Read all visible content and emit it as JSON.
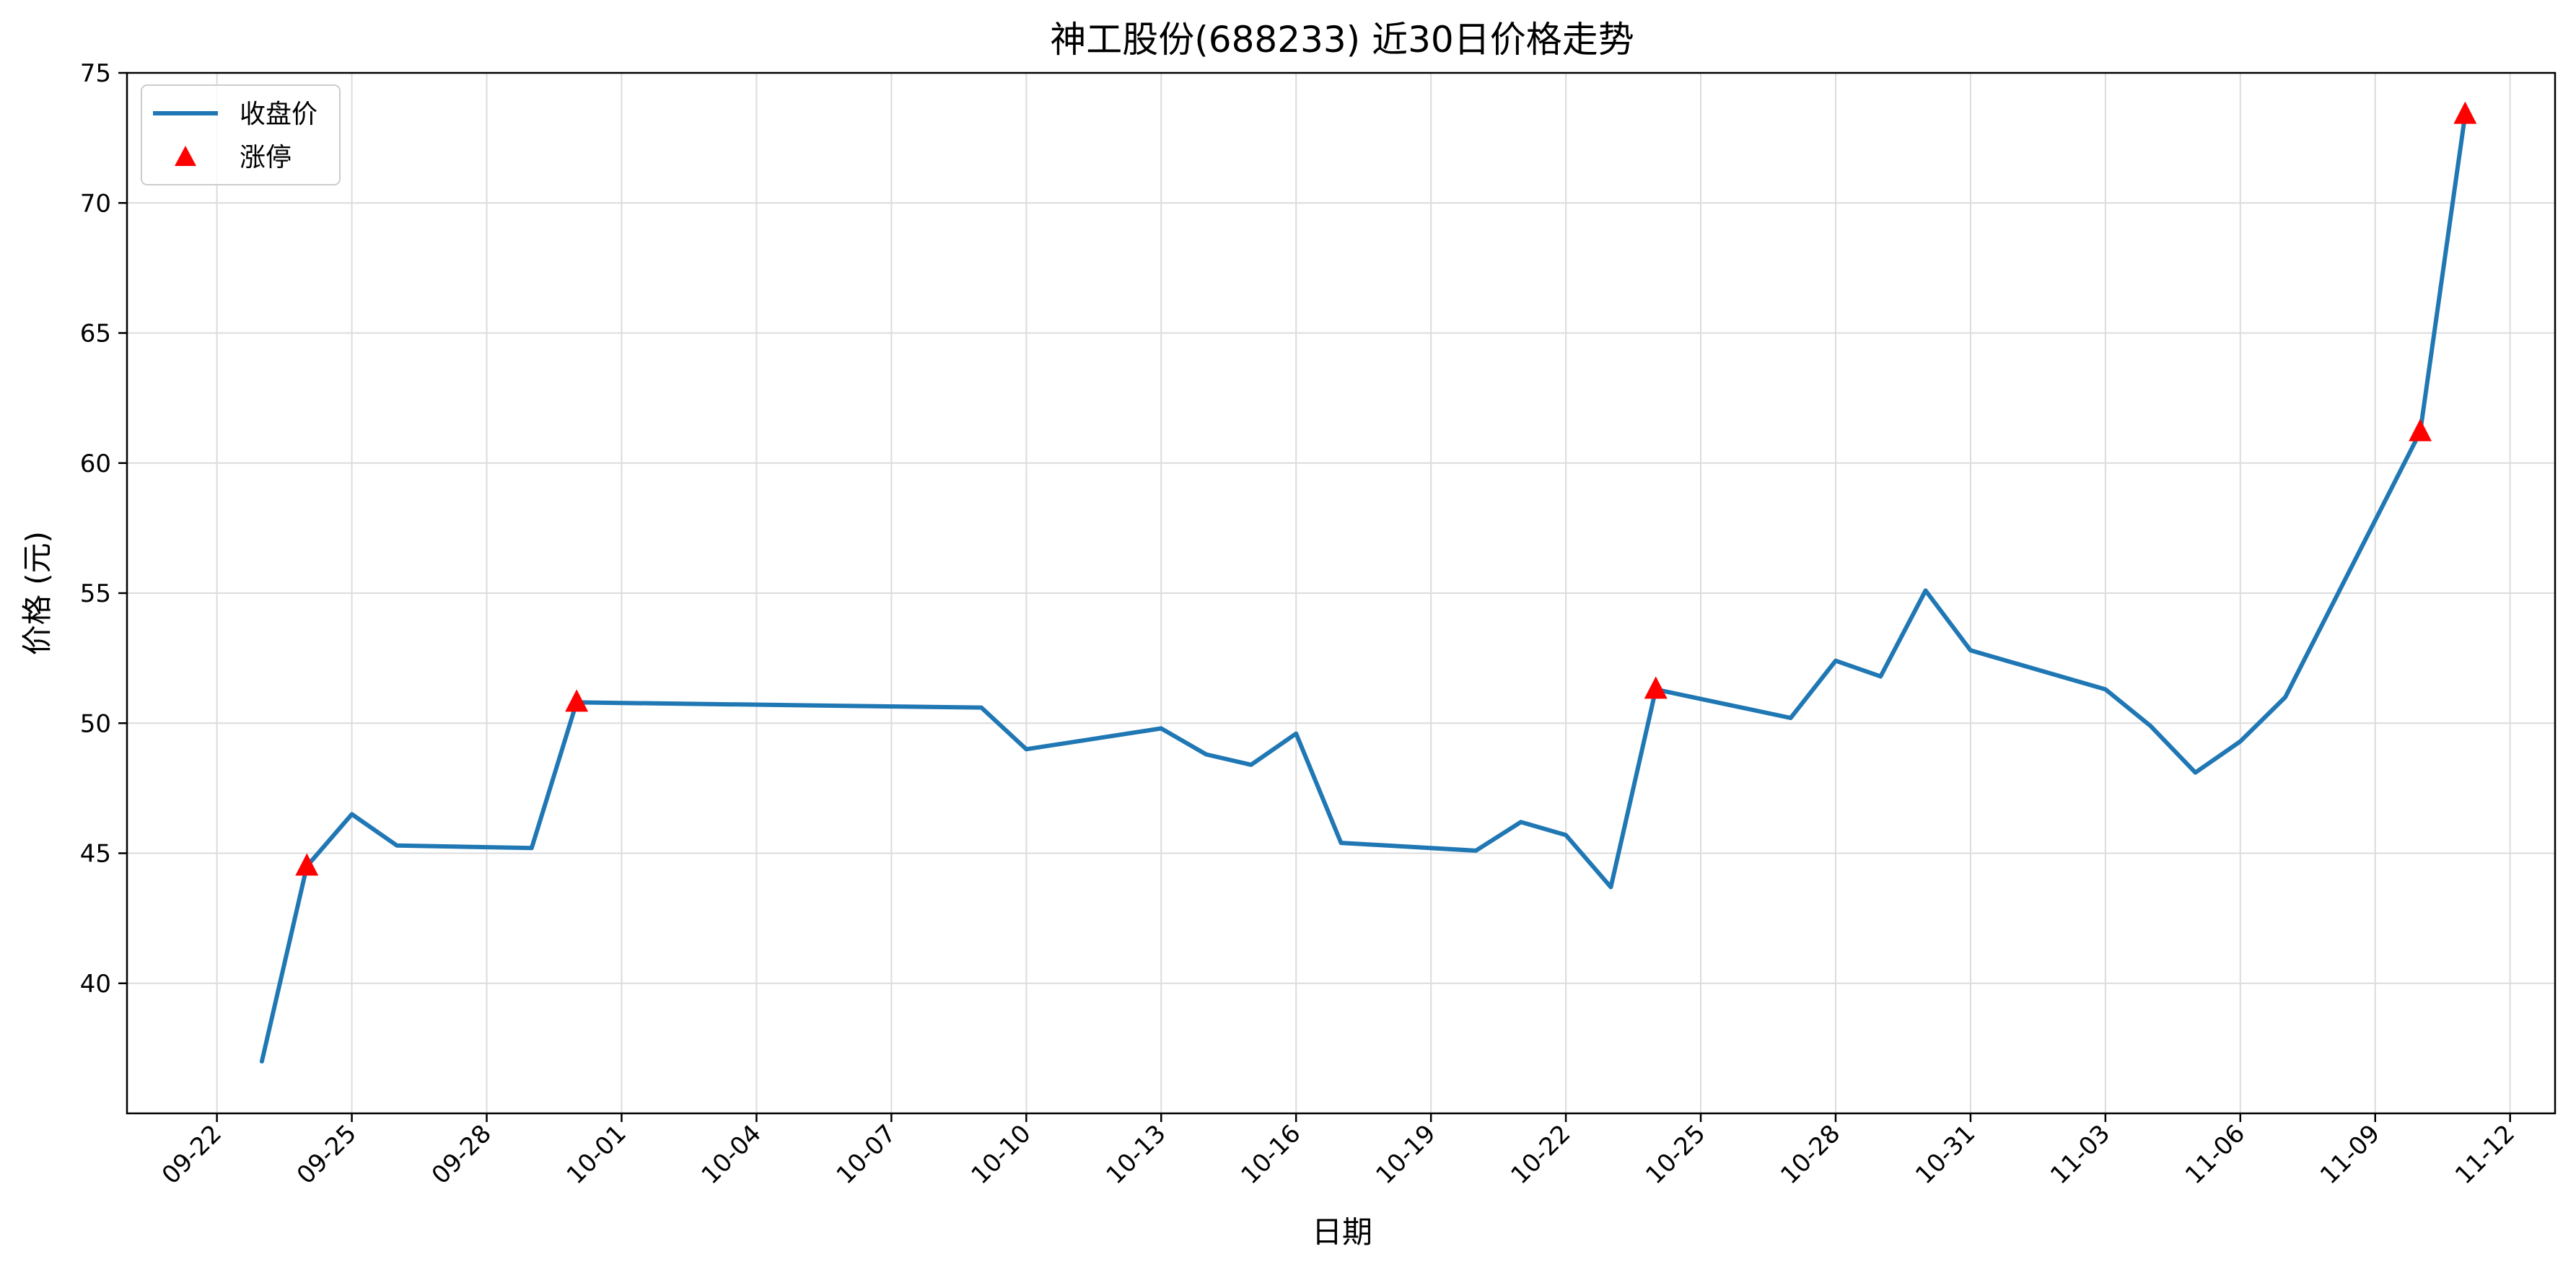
{
  "chart_data": {
    "type": "line",
    "title": "神工股份(688233) 近30日价格走势",
    "xlabel": "日期",
    "ylabel": "价格 (元)",
    "ylim": [
      35,
      75
    ],
    "yticks": [
      40,
      45,
      50,
      55,
      60,
      65,
      70,
      75
    ],
    "xlim": [
      "2025-09-20",
      "2025-11-13"
    ],
    "xticks": [
      {
        "date": "2025-09-22",
        "label": "09-22"
      },
      {
        "date": "2025-09-25",
        "label": "09-25"
      },
      {
        "date": "2025-09-28",
        "label": "09-28"
      },
      {
        "date": "2025-10-01",
        "label": "10-01"
      },
      {
        "date": "2025-10-04",
        "label": "10-04"
      },
      {
        "date": "2025-10-07",
        "label": "10-07"
      },
      {
        "date": "2025-10-10",
        "label": "10-10"
      },
      {
        "date": "2025-10-13",
        "label": "10-13"
      },
      {
        "date": "2025-10-16",
        "label": "10-16"
      },
      {
        "date": "2025-10-19",
        "label": "10-19"
      },
      {
        "date": "2025-10-22",
        "label": "10-22"
      },
      {
        "date": "2025-10-25",
        "label": "10-25"
      },
      {
        "date": "2025-10-28",
        "label": "10-28"
      },
      {
        "date": "2025-10-31",
        "label": "10-31"
      },
      {
        "date": "2025-11-03",
        "label": "11-03"
      },
      {
        "date": "2025-11-06",
        "label": "11-06"
      },
      {
        "date": "2025-11-09",
        "label": "11-09"
      },
      {
        "date": "2025-11-12",
        "label": "11-12"
      }
    ],
    "grid": true,
    "legend_position": "top-left",
    "series": [
      {
        "name": "收盘价",
        "kind": "line",
        "color": "#1f77b4",
        "points": [
          {
            "date": "2025-09-23",
            "y": 37.0
          },
          {
            "date": "2025-09-24",
            "y": 44.5
          },
          {
            "date": "2025-09-25",
            "y": 46.5
          },
          {
            "date": "2025-09-26",
            "y": 45.3
          },
          {
            "date": "2025-09-29",
            "y": 45.2
          },
          {
            "date": "2025-09-30",
            "y": 50.8
          },
          {
            "date": "2025-10-09",
            "y": 50.6
          },
          {
            "date": "2025-10-10",
            "y": 49.0
          },
          {
            "date": "2025-10-13",
            "y": 49.8
          },
          {
            "date": "2025-10-14",
            "y": 48.8
          },
          {
            "date": "2025-10-15",
            "y": 48.4
          },
          {
            "date": "2025-10-16",
            "y": 49.6
          },
          {
            "date": "2025-10-17",
            "y": 45.4
          },
          {
            "date": "2025-10-20",
            "y": 45.1
          },
          {
            "date": "2025-10-21",
            "y": 46.2
          },
          {
            "date": "2025-10-22",
            "y": 45.7
          },
          {
            "date": "2025-10-23",
            "y": 43.7
          },
          {
            "date": "2025-10-24",
            "y": 51.3
          },
          {
            "date": "2025-10-27",
            "y": 50.2
          },
          {
            "date": "2025-10-28",
            "y": 52.4
          },
          {
            "date": "2025-10-29",
            "y": 51.8
          },
          {
            "date": "2025-10-30",
            "y": 55.1
          },
          {
            "date": "2025-10-31",
            "y": 52.8
          },
          {
            "date": "2025-11-03",
            "y": 51.3
          },
          {
            "date": "2025-11-04",
            "y": 49.9
          },
          {
            "date": "2025-11-05",
            "y": 48.1
          },
          {
            "date": "2025-11-06",
            "y": 49.3
          },
          {
            "date": "2025-11-07",
            "y": 51.0
          },
          {
            "date": "2025-11-10",
            "y": 61.2
          },
          {
            "date": "2025-11-11",
            "y": 73.4
          }
        ]
      },
      {
        "name": "涨停",
        "kind": "scatter",
        "marker": "triangle",
        "color": "#ff0000",
        "points": [
          {
            "date": "2025-09-24",
            "y": 44.5
          },
          {
            "date": "2025-09-30",
            "y": 50.8
          },
          {
            "date": "2025-10-24",
            "y": 51.3
          },
          {
            "date": "2025-11-10",
            "y": 61.2
          },
          {
            "date": "2025-11-11",
            "y": 73.4
          }
        ]
      }
    ]
  }
}
